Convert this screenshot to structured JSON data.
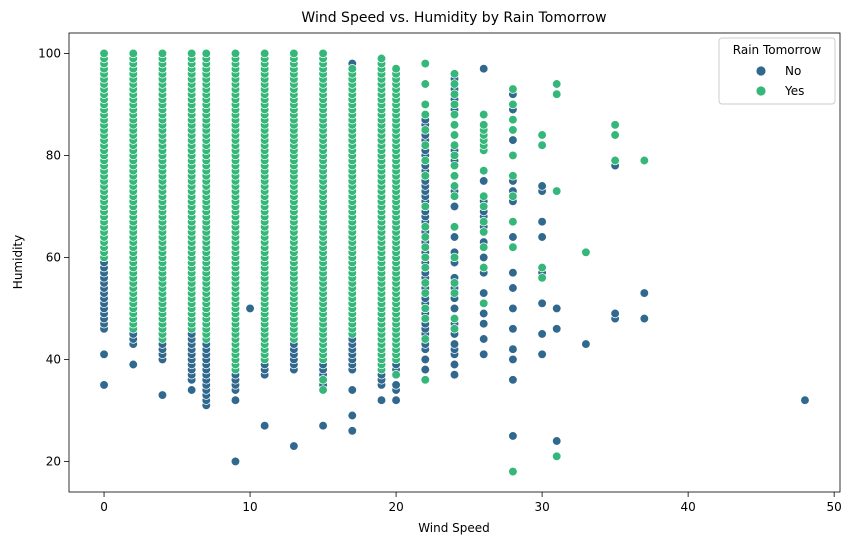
{
  "chart_data": {
    "type": "scatter",
    "title": "Wind Speed vs. Humidity by Rain Tomorrow",
    "xlabel": "Wind Speed",
    "ylabel": "Humidity",
    "xlim": [
      -2.4,
      50.4
    ],
    "ylim": [
      14,
      104
    ],
    "xticks": [
      0,
      10,
      20,
      30,
      40,
      50
    ],
    "yticks": [
      20,
      40,
      60,
      80,
      100
    ],
    "grid": false,
    "legend": {
      "title": "Rain Tomorrow",
      "placement": "top-right",
      "entries": [
        "No",
        "Yes"
      ]
    },
    "colors": {
      "No": "#31688e",
      "Yes": "#35b779"
    },
    "columns": [
      {
        "x": 0,
        "no": [
          35,
          41,
          [
            46,
            100
          ]
        ],
        "yes": [
          [
            60,
            100
          ]
        ]
      },
      {
        "x": 2,
        "no": [
          39,
          [
            43,
            100
          ]
        ],
        "yes": [
          [
            46,
            100
          ]
        ]
      },
      {
        "x": 4,
        "no": [
          33,
          [
            40,
            100
          ]
        ],
        "yes": [
          [
            44,
            100
          ]
        ]
      },
      {
        "x": 6,
        "no": [
          34,
          [
            36,
            100
          ]
        ],
        "yes": [
          [
            46,
            100
          ]
        ]
      },
      {
        "x": 7,
        "no": [
          31,
          32,
          [
            33,
            100
          ]
        ],
        "yes": [
          [
            44,
            100
          ]
        ]
      },
      {
        "x": 9,
        "no": [
          20,
          32,
          [
            34,
            100
          ]
        ],
        "yes": [
          [
            38,
            100
          ]
        ]
      },
      {
        "x": 10,
        "no": [
          50
        ],
        "yes": []
      },
      {
        "x": 11,
        "no": [
          27,
          [
            37,
            100
          ]
        ],
        "yes": [
          [
            40,
            100
          ]
        ]
      },
      {
        "x": 13,
        "no": [
          23,
          [
            38,
            100
          ]
        ],
        "yes": [
          [
            44,
            100
          ]
        ]
      },
      {
        "x": 15,
        "no": [
          27,
          [
            35,
            100
          ]
        ],
        "yes": [
          34,
          36,
          [
            40,
            100
          ]
        ]
      },
      {
        "x": 17,
        "no": [
          26,
          29,
          34,
          [
            38,
            98
          ]
        ],
        "yes": [
          [
            45,
            97
          ]
        ]
      },
      {
        "x": 19,
        "no": [
          32,
          35,
          [
            36,
            95
          ]
        ],
        "yes": [
          [
            38,
            99
          ]
        ]
      },
      {
        "x": 20,
        "no": [
          32,
          34,
          35,
          [
            38,
            90
          ]
        ],
        "yes": [
          37,
          [
            40,
            97
          ]
        ]
      },
      {
        "x": 22,
        "no": [
          36,
          38,
          40,
          [
            42,
            87
          ]
        ],
        "yes": [
          36,
          44,
          48,
          50,
          53,
          55,
          58,
          60,
          62,
          64,
          66,
          70,
          76,
          79,
          82,
          85,
          88,
          90,
          94,
          98
        ]
      },
      {
        "x": 24,
        "no": [
          37,
          39,
          41,
          42,
          43,
          45,
          47,
          48,
          50,
          52,
          54,
          56,
          59,
          61,
          64,
          66,
          70,
          73,
          76,
          79,
          81,
          84,
          86,
          89,
          91,
          93,
          95
        ],
        "yes": [
          46,
          48,
          53,
          55,
          60,
          66,
          72,
          74,
          76,
          78,
          80,
          82,
          84,
          86,
          88,
          90,
          92,
          94,
          96
        ]
      },
      {
        "x": 26,
        "no": [
          41,
          44,
          47,
          49,
          53,
          57,
          60,
          63,
          66,
          68,
          69,
          71,
          75,
          81,
          97
        ],
        "yes": [
          51,
          58,
          62,
          65,
          67,
          70,
          72,
          77,
          81,
          82,
          83,
          84,
          85,
          86,
          88
        ]
      },
      {
        "x": 28,
        "no": [
          25,
          36,
          40,
          42,
          46,
          50,
          54,
          57,
          64,
          71,
          73,
          75,
          83,
          89,
          92
        ],
        "yes": [
          18,
          62,
          67,
          72,
          76,
          80,
          85,
          87,
          90,
          93
        ]
      },
      {
        "x": 30,
        "no": [
          41,
          45,
          51,
          57,
          64,
          67,
          73,
          74
        ],
        "yes": [
          56,
          58,
          82,
          84
        ]
      },
      {
        "x": 31,
        "no": [
          24,
          46,
          50,
          73
        ],
        "yes": [
          21,
          73,
          92,
          94
        ]
      },
      {
        "x": 33,
        "no": [
          43
        ],
        "yes": [
          61
        ]
      },
      {
        "x": 35,
        "no": [
          48,
          49,
          78
        ],
        "yes": [
          79,
          84,
          86
        ]
      },
      {
        "x": 37,
        "no": [
          48,
          53
        ],
        "yes": [
          79
        ]
      },
      {
        "x": 48,
        "no": [
          32
        ],
        "yes": []
      }
    ]
  }
}
